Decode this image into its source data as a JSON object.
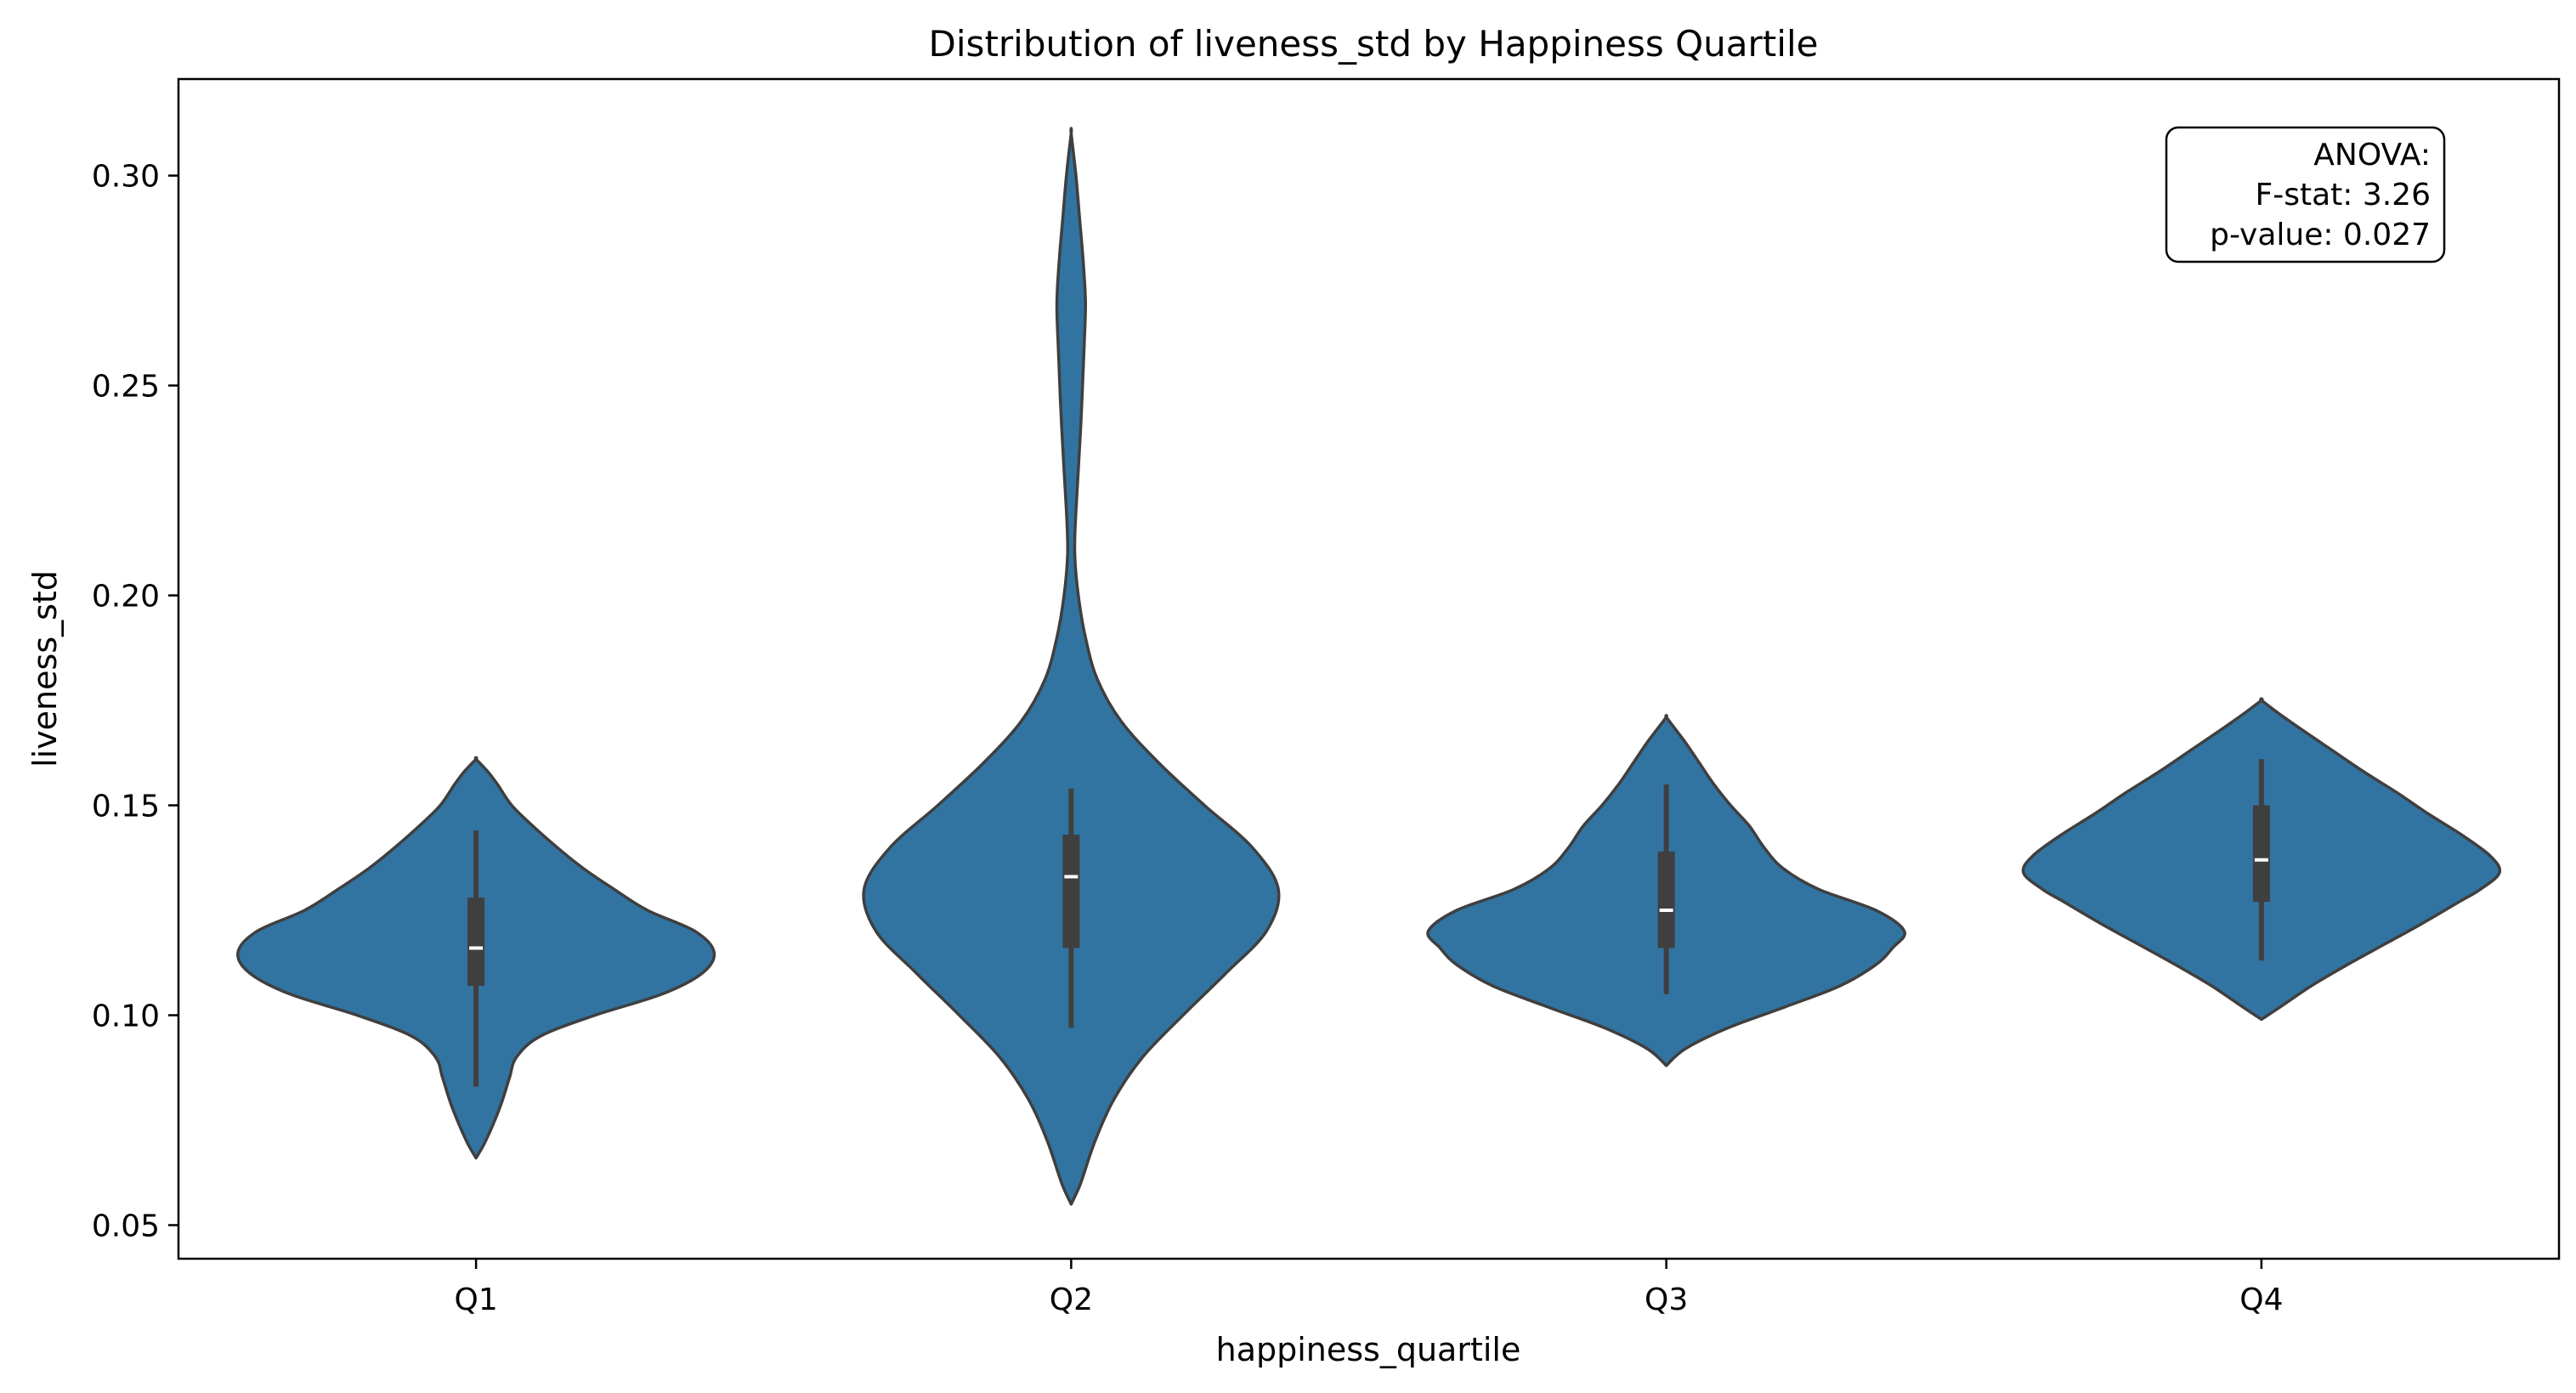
{
  "chart_data": {
    "type": "violin",
    "title": "Distribution of liveness_std by Happiness Quartile",
    "xlabel": "happiness_quartile",
    "ylabel": "liveness_std",
    "ylim": [
      0.042,
      0.323
    ],
    "yticks": [
      "0.05",
      "0.10",
      "0.15",
      "0.20",
      "0.25",
      "0.30"
    ],
    "ytick_values": [
      0.05,
      0.1,
      0.15,
      0.2,
      0.25,
      0.3
    ],
    "categories": [
      "Q1",
      "Q2",
      "Q3",
      "Q4"
    ],
    "grid": false,
    "legend": "none",
    "colors": {
      "fill": "#3274a1",
      "edge": "#3f3f3f",
      "box": "#3f3f3f",
      "median": "#ffffff"
    },
    "violins": [
      {
        "category": "Q1",
        "min": 0.066,
        "max": 0.161,
        "q1": 0.107,
        "median": 0.116,
        "q3": 0.128,
        "whisker_low": 0.083,
        "whisker_high": 0.144,
        "profile": [
          [
            0.066,
            0.0
          ],
          [
            0.07,
            0.04
          ],
          [
            0.078,
            0.1
          ],
          [
            0.085,
            0.14
          ],
          [
            0.09,
            0.17
          ],
          [
            0.095,
            0.27
          ],
          [
            0.1,
            0.5
          ],
          [
            0.105,
            0.78
          ],
          [
            0.11,
            0.95
          ],
          [
            0.115,
            1.0
          ],
          [
            0.12,
            0.92
          ],
          [
            0.125,
            0.72
          ],
          [
            0.13,
            0.58
          ],
          [
            0.135,
            0.45
          ],
          [
            0.14,
            0.34
          ],
          [
            0.145,
            0.24
          ],
          [
            0.15,
            0.15
          ],
          [
            0.155,
            0.09
          ],
          [
            0.158,
            0.05
          ],
          [
            0.161,
            0.0
          ]
        ]
      },
      {
        "category": "Q2",
        "min": 0.055,
        "max": 0.31,
        "q1": 0.116,
        "median": 0.133,
        "q3": 0.143,
        "whisker_low": 0.097,
        "whisker_high": 0.154,
        "profile": [
          [
            0.055,
            0.0
          ],
          [
            0.06,
            0.04
          ],
          [
            0.07,
            0.1
          ],
          [
            0.08,
            0.18
          ],
          [
            0.09,
            0.3
          ],
          [
            0.1,
            0.47
          ],
          [
            0.11,
            0.65
          ],
          [
            0.12,
            0.82
          ],
          [
            0.13,
            0.87
          ],
          [
            0.14,
            0.76
          ],
          [
            0.15,
            0.56
          ],
          [
            0.16,
            0.37
          ],
          [
            0.17,
            0.21
          ],
          [
            0.18,
            0.11
          ],
          [
            0.19,
            0.06
          ],
          [
            0.2,
            0.03
          ],
          [
            0.21,
            0.015
          ],
          [
            0.22,
            0.02
          ],
          [
            0.24,
            0.04
          ],
          [
            0.26,
            0.055
          ],
          [
            0.27,
            0.06
          ],
          [
            0.28,
            0.05
          ],
          [
            0.29,
            0.035
          ],
          [
            0.3,
            0.02
          ],
          [
            0.31,
            0.0
          ]
        ]
      },
      {
        "category": "Q3",
        "min": 0.088,
        "max": 0.171,
        "q1": 0.116,
        "median": 0.125,
        "q3": 0.139,
        "whisker_low": 0.105,
        "whisker_high": 0.155,
        "profile": [
          [
            0.088,
            0.0
          ],
          [
            0.092,
            0.08
          ],
          [
            0.097,
            0.26
          ],
          [
            0.102,
            0.5
          ],
          [
            0.107,
            0.73
          ],
          [
            0.112,
            0.88
          ],
          [
            0.116,
            0.95
          ],
          [
            0.12,
            1.0
          ],
          [
            0.125,
            0.88
          ],
          [
            0.13,
            0.64
          ],
          [
            0.135,
            0.49
          ],
          [
            0.14,
            0.41
          ],
          [
            0.145,
            0.35
          ],
          [
            0.15,
            0.27
          ],
          [
            0.155,
            0.2
          ],
          [
            0.16,
            0.14
          ],
          [
            0.165,
            0.08
          ],
          [
            0.168,
            0.04
          ],
          [
            0.171,
            0.0
          ]
        ]
      },
      {
        "category": "Q4",
        "min": 0.099,
        "max": 0.175,
        "q1": 0.127,
        "median": 0.137,
        "q3": 0.15,
        "whisker_low": 0.113,
        "whisker_high": 0.161,
        "profile": [
          [
            0.099,
            0.0
          ],
          [
            0.102,
            0.08
          ],
          [
            0.107,
            0.21
          ],
          [
            0.112,
            0.36
          ],
          [
            0.117,
            0.52
          ],
          [
            0.122,
            0.68
          ],
          [
            0.127,
            0.83
          ],
          [
            0.13,
            0.92
          ],
          [
            0.134,
            1.0
          ],
          [
            0.138,
            0.96
          ],
          [
            0.143,
            0.84
          ],
          [
            0.148,
            0.7
          ],
          [
            0.153,
            0.57
          ],
          [
            0.158,
            0.43
          ],
          [
            0.163,
            0.3
          ],
          [
            0.168,
            0.17
          ],
          [
            0.172,
            0.07
          ],
          [
            0.175,
            0.0
          ]
        ]
      }
    ],
    "annotation": {
      "lines": [
        "ANOVA:",
        "F-stat: 3.26",
        "p-value: 0.027"
      ]
    }
  }
}
